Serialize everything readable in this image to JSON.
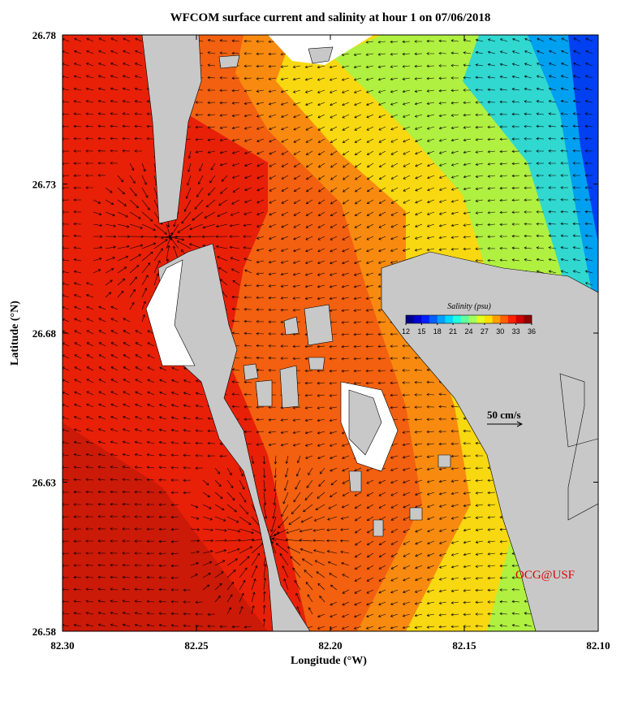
{
  "chart_data": {
    "type": "contour",
    "title": "WFCOM surface current and salinity at hour 1 on 07/06/2018",
    "x_label": "Longitude (°W)",
    "y_label": "Latitude (°N)",
    "xlim": [
      82.3,
      82.1
    ],
    "xticks": [
      {
        "value": 82.3,
        "label": "82.30"
      },
      82.25,
      {
        "value": 82.2,
        "label": "82.20"
      },
      82.15,
      {
        "value": 82.1,
        "label": "82.10"
      }
    ],
    "ylim": [
      26.58,
      26.78
    ],
    "yticks": [
      26.58,
      26.63,
      26.68,
      26.73,
      26.78
    ],
    "colorbar": {
      "label": "Salinity (psu)",
      "lim": [
        12,
        36
      ],
      "ticks": [
        12,
        15,
        18,
        21,
        24,
        27,
        30,
        33,
        36
      ],
      "colors": [
        "#00008f",
        "#0000d0",
        "#0020ff",
        "#0060ff",
        "#00a0ff",
        "#00d8ff",
        "#20ffe0",
        "#60ffa0",
        "#a0ff60",
        "#e0ff20",
        "#ffe000",
        "#ffa000",
        "#ff6000",
        "#ff2000",
        "#d00000",
        "#8f0000"
      ]
    },
    "annotations": [
      "50 cm/s",
      "OCG@USF"
    ]
  }
}
